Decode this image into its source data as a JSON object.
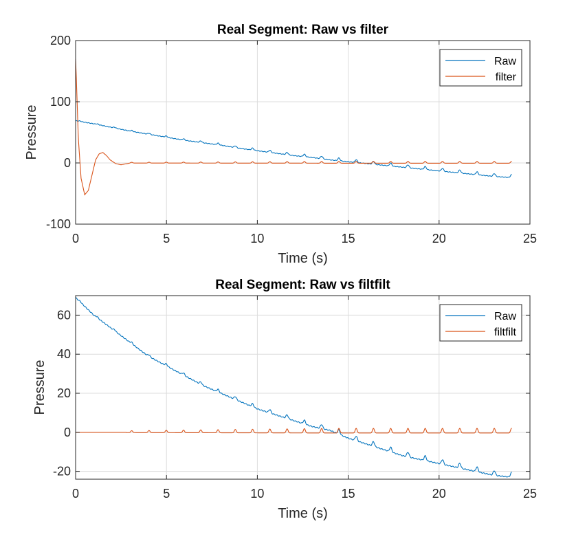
{
  "chart_data": [
    {
      "type": "line",
      "title": "Real Segment: Raw vs filter",
      "xlabel": "Time (s)",
      "ylabel": "Pressure",
      "xlim": [
        0,
        25
      ],
      "ylim": [
        -100,
        200
      ],
      "xticks": [
        "0",
        "5",
        "10",
        "15",
        "20",
        "25"
      ],
      "yticks": [
        "-100",
        "0",
        "100",
        "200"
      ],
      "grid": true,
      "legend_position": "top-right",
      "series": [
        {
          "name": "Raw",
          "color": "#0072BD",
          "x": [
            0,
            1,
            2,
            3,
            4,
            5,
            6,
            7,
            8,
            9,
            10,
            11,
            12,
            13,
            14,
            15,
            16,
            17,
            18,
            19,
            20,
            21,
            22,
            23,
            24
          ],
          "y": [
            69,
            64,
            58,
            52,
            47,
            42,
            37,
            33,
            29,
            24,
            20,
            16,
            12,
            9,
            5,
            2,
            -1,
            -4,
            -7,
            -10,
            -13,
            -16,
            -19,
            -22,
            -24
          ]
        },
        {
          "name": "filter",
          "color": "#D95319",
          "x": [
            0,
            0.05,
            0.15,
            0.3,
            0.5,
            0.7,
            0.9,
            1.1,
            1.3,
            1.5,
            1.7,
            1.9,
            2.2,
            2.5,
            3,
            4,
            6,
            8,
            10,
            12,
            14,
            16,
            18,
            20,
            22,
            24
          ],
          "y": [
            170,
            130,
            40,
            -25,
            -52,
            -45,
            -20,
            5,
            15,
            17,
            12,
            5,
            -1,
            -3,
            0,
            0,
            0,
            0,
            0,
            0,
            0,
            0,
            0,
            0,
            0,
            0
          ]
        }
      ]
    },
    {
      "type": "line",
      "title": "Real Segment: Raw vs filtfilt",
      "xlabel": "Time (s)",
      "ylabel": "Pressure",
      "xlim": [
        0,
        25
      ],
      "ylim": [
        -24,
        70
      ],
      "xticks": [
        "0",
        "5",
        "10",
        "15",
        "20",
        "25"
      ],
      "yticks": [
        "-20",
        "0",
        "20",
        "40",
        "60"
      ],
      "grid": true,
      "legend_position": "top-right",
      "series": [
        {
          "name": "Raw",
          "color": "#0072BD",
          "x": [
            0,
            1,
            2,
            3,
            4,
            5,
            6,
            7,
            8,
            9,
            10,
            11,
            12,
            13,
            14,
            15,
            16,
            17,
            18,
            19,
            20,
            21,
            22,
            23,
            24
          ],
          "y": [
            69,
            60,
            53,
            46,
            39,
            34,
            29,
            24,
            20,
            16,
            12,
            9,
            6,
            3,
            1,
            -3,
            -6,
            -9,
            -12,
            -14,
            -16,
            -18,
            -20,
            -22,
            -23
          ]
        },
        {
          "name": "filtfilt",
          "color": "#D95319",
          "x": [
            0,
            2,
            4,
            6,
            8,
            10,
            12,
            14,
            16,
            18,
            20,
            22,
            24
          ],
          "y": [
            0,
            0,
            0,
            0,
            0,
            0,
            0,
            0,
            0,
            0,
            0,
            0,
            0
          ]
        }
      ]
    }
  ]
}
